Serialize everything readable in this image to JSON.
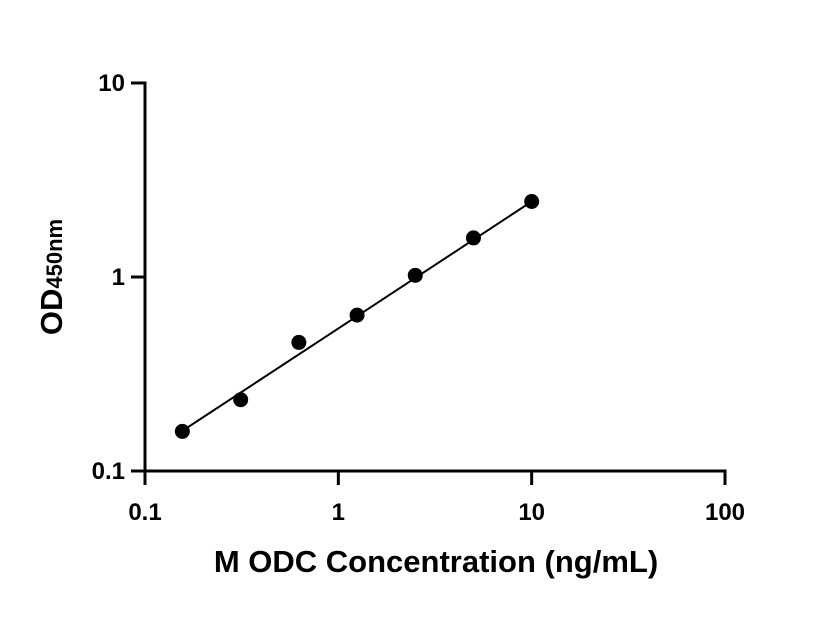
{
  "chart_data": {
    "type": "scatter",
    "title": "",
    "xlabel": "M ODC Concentration (ng/mL)",
    "ylabel_main": "OD",
    "ylabel_sub": "450nm",
    "xscale": "log",
    "yscale": "log",
    "xlim": [
      0.1,
      100
    ],
    "ylim": [
      0.1,
      10
    ],
    "xticks": [
      0.1,
      1,
      10,
      100
    ],
    "yticks": [
      0.1,
      1,
      10
    ],
    "xtick_labels": [
      "0.1",
      "1",
      "10",
      "100"
    ],
    "ytick_labels": [
      "0.1",
      "1",
      "10"
    ],
    "grid": false,
    "legend": "none",
    "series": [
      {
        "x": [
          0.156,
          0.3125,
          0.625,
          1.25,
          2.5,
          5,
          10
        ],
        "y": [
          0.16,
          0.233,
          0.46,
          0.636,
          1.02,
          1.59,
          2.45
        ]
      }
    ],
    "fit_line": {
      "x": [
        0.156,
        10
      ],
      "y": [
        0.161,
        2.45
      ]
    },
    "colors": {
      "points": "#000000",
      "line": "#000000",
      "axes": "#000000"
    }
  }
}
